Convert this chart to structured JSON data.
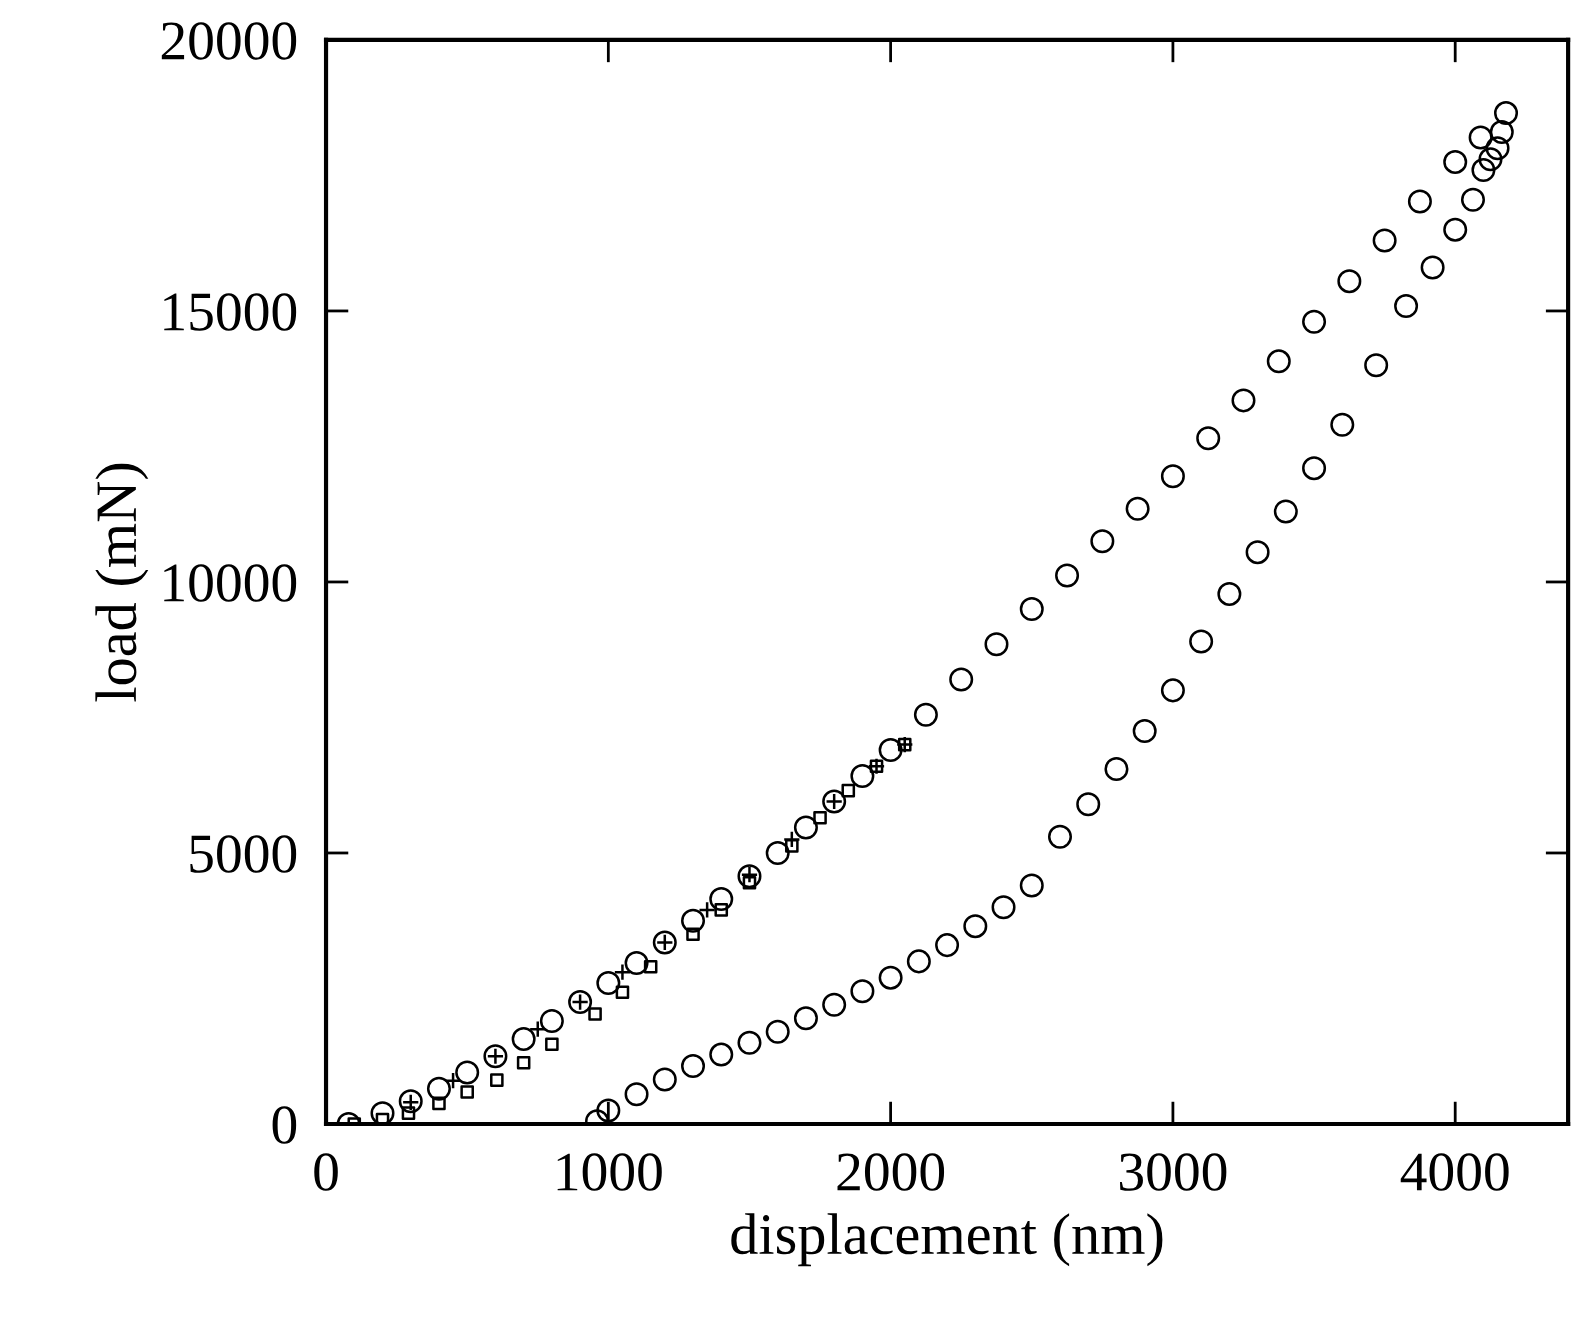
{
  "chart_data": {
    "type": "scatter",
    "xlabel": "displacement (nm)",
    "ylabel": "load (mN)",
    "xlim": [
      0,
      4400
    ],
    "xticks": [
      0,
      1000,
      2000,
      3000,
      4000
    ],
    "ylim": [
      0,
      20000
    ],
    "yticks": [
      0,
      5000,
      10000,
      15000,
      20000
    ],
    "grid": false,
    "series": [
      {
        "color": "#000000",
        "marker": "circle",
        "x": [
          80,
          200,
          300,
          400,
          500,
          600,
          700,
          800,
          900,
          1000,
          1100,
          1200,
          1300,
          1400,
          1500,
          1600,
          1700,
          1800,
          1900,
          2000,
          2125,
          2250,
          2375,
          2500,
          2625,
          2750,
          2875,
          3000,
          3125,
          3250,
          3375,
          3500,
          3625,
          3750,
          3875,
          4000,
          4090,
          4180
        ],
        "values": [
          0,
          200,
          420,
          650,
          950,
          1250,
          1570,
          1900,
          2250,
          2600,
          2970,
          3350,
          3750,
          4150,
          4570,
          5000,
          5470,
          5950,
          6420,
          6900,
          7550,
          8200,
          8850,
          9500,
          10120,
          10750,
          11350,
          11950,
          12650,
          13350,
          14070,
          14800,
          15550,
          16300,
          17020,
          17750,
          18200,
          18650
        ]
      },
      {
        "color": "#000000",
        "marker": "circle",
        "x": [
          4165,
          4150,
          4125,
          4100,
          4063,
          4000,
          3920,
          3826,
          3720,
          3600,
          3500,
          3400,
          3300,
          3200,
          3100,
          3000,
          2900,
          2800,
          2700,
          2600,
          2500,
          2400,
          2300,
          2200,
          2100,
          2000,
          1900,
          1800,
          1700,
          1600,
          1500,
          1400,
          1300,
          1200,
          1100,
          1000,
          960
        ],
        "values": [
          18300,
          18000,
          17800,
          17600,
          17050,
          16500,
          15800,
          15090,
          14000,
          12900,
          12100,
          11300,
          10550,
          9780,
          8900,
          8000,
          7250,
          6550,
          5900,
          5300,
          4400,
          4000,
          3650,
          3300,
          3000,
          2700,
          2450,
          2200,
          1950,
          1700,
          1500,
          1280,
          1070,
          820,
          550,
          250,
          50
        ]
      },
      {
        "color": "#000000",
        "marker": "square",
        "x": [
          100,
          200,
          292,
          400,
          500,
          605,
          700,
          800,
          953,
          1050,
          1150,
          1300,
          1400,
          1500,
          1650,
          1750,
          1850,
          1950,
          2050
        ],
        "values": [
          0,
          80,
          200,
          380,
          590,
          810,
          1130,
          1470,
          2030,
          2430,
          2900,
          3500,
          3950,
          4450,
          5130,
          5650,
          6150,
          6600,
          7000
        ]
      },
      {
        "color": "#000000",
        "marker": "cross",
        "x": [
          300,
          450,
          600,
          750,
          900,
          1050,
          1200,
          1350,
          1500,
          1650,
          1800,
          1950,
          2050
        ],
        "values": [
          400,
          800,
          1250,
          1750,
          2250,
          2800,
          3350,
          3950,
          4600,
          5250,
          5950,
          6600,
          7000
        ]
      }
    ]
  }
}
